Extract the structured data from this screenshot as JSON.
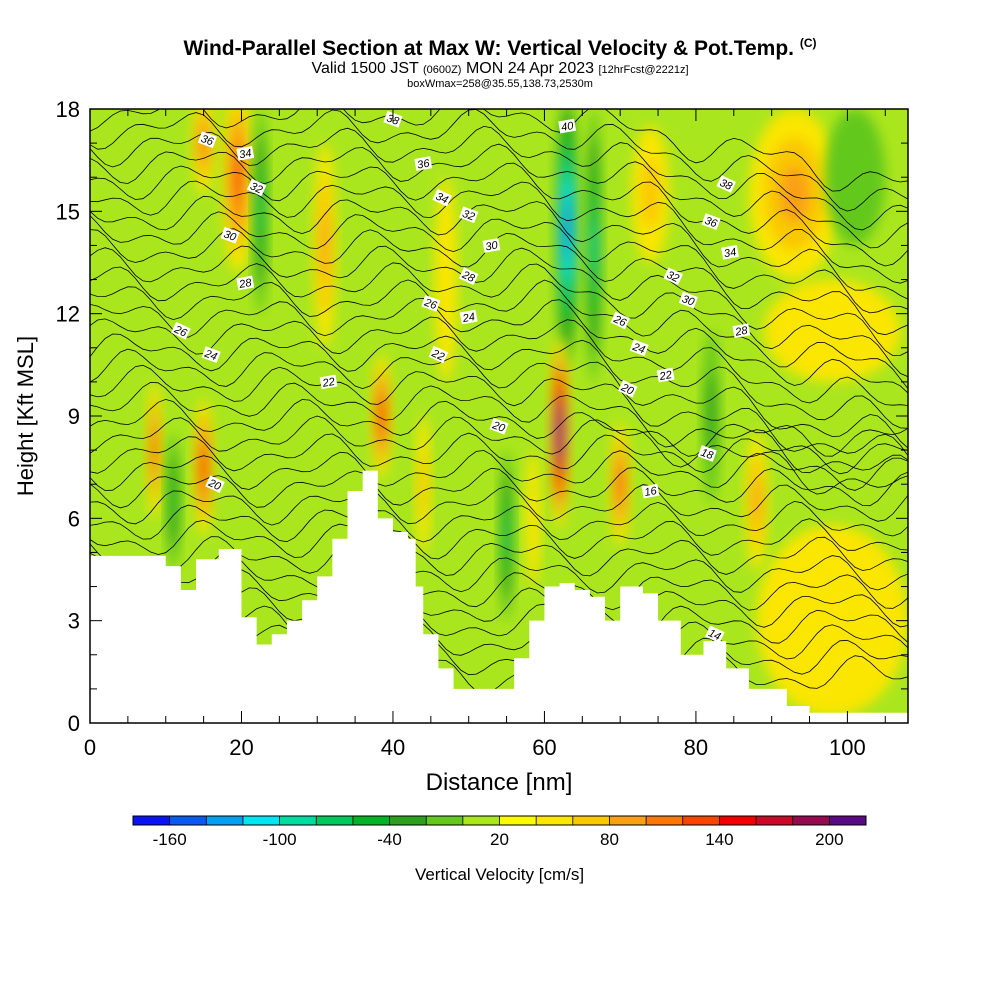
{
  "title_main": "Wind-Parallel Section at Max W: Vertical Velocity & Pot.Temp.",
  "title_c": "(C)",
  "title_valid_a": "Valid 1500 JST",
  "title_valid_b": "(0600Z)",
  "title_valid_c": "MON 24 Apr 2023",
  "title_valid_d": "[12hrFcst@2221z]",
  "title_box": "boxWmax=258@35.55,138.73,2530m",
  "chart_data": {
    "type": "heatmap",
    "xlabel": "Distance [nm]",
    "ylabel": "Height [Kft MSL]",
    "xlim": [
      0,
      108
    ],
    "ylim": [
      0,
      18
    ],
    "x_ticks": [
      "0",
      "20",
      "40",
      "60",
      "80",
      "100"
    ],
    "y_ticks": [
      "0",
      "3",
      "6",
      "9",
      "12",
      "15",
      "18"
    ],
    "colorbar_label": "Vertical Velocity [cm/s]",
    "colorbar_ticks": [
      "-160",
      "-100",
      "-40",
      "20",
      "80",
      "140",
      "200"
    ],
    "colorbar_colors": [
      "#0a14f0",
      "#0a5af0",
      "#00a0f0",
      "#00e6f0",
      "#00dca0",
      "#00c85a",
      "#00b428",
      "#2ca01e",
      "#64c81e",
      "#aae61e",
      "#fafa00",
      "#fae600",
      "#fac800",
      "#faa014",
      "#fa780a",
      "#f54600",
      "#f00000",
      "#c80a28",
      "#960a50",
      "#5a0a82"
    ],
    "terrain": [
      [
        0,
        4.9
      ],
      [
        8,
        4.9
      ],
      [
        10,
        4.6
      ],
      [
        12,
        3.9
      ],
      [
        14,
        4.8
      ],
      [
        17,
        5.1
      ],
      [
        20,
        3.1
      ],
      [
        22,
        2.3
      ],
      [
        24,
        2.6
      ],
      [
        26,
        3.0
      ],
      [
        28,
        3.6
      ],
      [
        30,
        4.3
      ],
      [
        32,
        5.4
      ],
      [
        34,
        6.8
      ],
      [
        36,
        7.4
      ],
      [
        38,
        6.0
      ],
      [
        40,
        5.6
      ],
      [
        42,
        5.4
      ],
      [
        43,
        4.0
      ],
      [
        44,
        2.6
      ],
      [
        46,
        1.6
      ],
      [
        48,
        1.0
      ],
      [
        54,
        1.0
      ],
      [
        56,
        1.9
      ],
      [
        58,
        3.0
      ],
      [
        60,
        4.0
      ],
      [
        62,
        4.1
      ],
      [
        64,
        3.9
      ],
      [
        66,
        3.7
      ],
      [
        68,
        3.0
      ],
      [
        70,
        4.0
      ],
      [
        73,
        3.8
      ],
      [
        75,
        3.0
      ],
      [
        78,
        2.0
      ],
      [
        81,
        2.4
      ],
      [
        84,
        1.6
      ],
      [
        87,
        1.0
      ],
      [
        92,
        0.5
      ],
      [
        95,
        0.3
      ],
      [
        108,
        0.3
      ]
    ],
    "theta_labels": [
      {
        "text": "36",
        "x": 15.5,
        "y": 17.1
      },
      {
        "text": "34",
        "x": 20.5,
        "y": 16.7
      },
      {
        "text": "32",
        "x": 22,
        "y": 15.7
      },
      {
        "text": "30",
        "x": 18.5,
        "y": 14.3
      },
      {
        "text": "28",
        "x": 20.5,
        "y": 12.9
      },
      {
        "text": "26",
        "x": 12,
        "y": 11.5
      },
      {
        "text": "24",
        "x": 16,
        "y": 10.8
      },
      {
        "text": "22",
        "x": 31.5,
        "y": 10.0
      },
      {
        "text": "20",
        "x": 16.5,
        "y": 7.0
      },
      {
        "text": "38",
        "x": 40,
        "y": 17.7
      },
      {
        "text": "36",
        "x": 44,
        "y": 16.4
      },
      {
        "text": "34",
        "x": 46.5,
        "y": 15.4
      },
      {
        "text": "32",
        "x": 50,
        "y": 14.9
      },
      {
        "text": "30",
        "x": 53,
        "y": 14.0
      },
      {
        "text": "28",
        "x": 50,
        "y": 13.1
      },
      {
        "text": "26",
        "x": 45,
        "y": 12.3
      },
      {
        "text": "24",
        "x": 50,
        "y": 11.9
      },
      {
        "text": "22",
        "x": 46,
        "y": 10.8
      },
      {
        "text": "20",
        "x": 54,
        "y": 8.7
      },
      {
        "text": "40",
        "x": 63,
        "y": 17.5
      },
      {
        "text": "38",
        "x": 84,
        "y": 15.8
      },
      {
        "text": "36",
        "x": 82,
        "y": 14.7
      },
      {
        "text": "34",
        "x": 84.5,
        "y": 13.8
      },
      {
        "text": "32",
        "x": 77,
        "y": 13.1
      },
      {
        "text": "30",
        "x": 79,
        "y": 12.4
      },
      {
        "text": "28",
        "x": 86,
        "y": 11.5
      },
      {
        "text": "26",
        "x": 70,
        "y": 11.8
      },
      {
        "text": "24",
        "x": 72.5,
        "y": 11.0
      },
      {
        "text": "22",
        "x": 76,
        "y": 10.2
      },
      {
        "text": "20",
        "x": 71,
        "y": 9.8
      },
      {
        "text": "18",
        "x": 81.5,
        "y": 7.9
      },
      {
        "text": "16",
        "x": 74,
        "y": 6.8
      },
      {
        "text": "14",
        "x": 82.5,
        "y": 2.6
      }
    ],
    "w_features": [
      {
        "x": 63,
        "y": 14.5,
        "rx": 1.6,
        "ry": 4.0,
        "w": -150
      },
      {
        "x": 62,
        "y": 8.5,
        "rx": 1.3,
        "ry": 2.8,
        "w": 210
      },
      {
        "x": 19.5,
        "y": 16.0,
        "rx": 2.0,
        "ry": 2.8,
        "w": 100
      },
      {
        "x": 15,
        "y": 17.0,
        "rx": 1.5,
        "ry": 1.5,
        "w": 70
      },
      {
        "x": 8.5,
        "y": 8.0,
        "rx": 1.0,
        "ry": 2.0,
        "w": 100
      },
      {
        "x": 15,
        "y": 7.5,
        "rx": 1.3,
        "ry": 2.0,
        "w": 120
      },
      {
        "x": 38.5,
        "y": 9.0,
        "rx": 1.3,
        "ry": 1.8,
        "w": 120
      },
      {
        "x": 70,
        "y": 7.0,
        "rx": 1.3,
        "ry": 1.8,
        "w": 100
      },
      {
        "x": 66.5,
        "y": 14.0,
        "rx": 1.1,
        "ry": 4.0,
        "w": -90
      },
      {
        "x": 22.5,
        "y": 15.0,
        "rx": 1.0,
        "ry": 3.0,
        "w": -80
      },
      {
        "x": 55,
        "y": 5.5,
        "rx": 1.0,
        "ry": 2.5,
        "w": -80
      },
      {
        "x": 82,
        "y": 9.0,
        "rx": 1.2,
        "ry": 2.5,
        "w": -40
      },
      {
        "x": 93,
        "y": 15.5,
        "rx": 6.0,
        "ry": 2.5,
        "w": 50
      },
      {
        "x": 98,
        "y": 11.5,
        "rx": 9.0,
        "ry": 1.5,
        "w": 20
      },
      {
        "x": 31,
        "y": 14.0,
        "rx": 1.5,
        "ry": 3.0,
        "w": 50
      },
      {
        "x": 47,
        "y": 13.0,
        "rx": 1.5,
        "ry": 3.0,
        "w": 20
      },
      {
        "x": 74,
        "y": 15.5,
        "rx": 2.5,
        "ry": 2.0,
        "w": 40
      },
      {
        "x": 98,
        "y": 3.0,
        "rx": 10.0,
        "ry": 2.8,
        "w": 10
      },
      {
        "x": 88,
        "y": 6.5,
        "rx": 1.5,
        "ry": 2.0,
        "w": 60
      },
      {
        "x": 44,
        "y": 7.0,
        "rx": 1.0,
        "ry": 2.0,
        "w": 40
      },
      {
        "x": 11,
        "y": 6.5,
        "rx": 1.0,
        "ry": 2.0,
        "w": -60
      },
      {
        "x": 58.5,
        "y": 6.0,
        "rx": 1.0,
        "ry": 2.0,
        "w": 20
      },
      {
        "x": 101,
        "y": 16.0,
        "rx": 4.0,
        "ry": 2.0,
        "w": -20
      }
    ]
  }
}
